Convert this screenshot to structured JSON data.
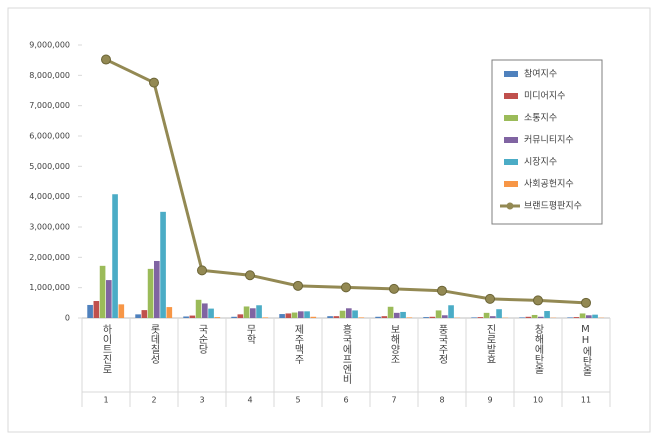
{
  "chart_data": {
    "type": "bar",
    "categories": [
      "하이트진로",
      "롯데칠성",
      "국순당",
      "무학",
      "제주맥주",
      "흥국에프엔비",
      "보해양조",
      "풍국주정",
      "진로발효",
      "창해에탄올",
      "MH에탄올"
    ],
    "category_numbers": [
      1,
      2,
      3,
      4,
      5,
      6,
      7,
      8,
      9,
      10,
      11
    ],
    "series": [
      {
        "name": "참여지수",
        "color": "#4f81bd",
        "values": [
          430000,
          120000,
          50000,
          40000,
          130000,
          60000,
          40000,
          30000,
          20000,
          20000,
          20000
        ]
      },
      {
        "name": "미디어지수",
        "color": "#c0504d",
        "values": [
          560000,
          260000,
          80000,
          120000,
          150000,
          60000,
          60000,
          40000,
          30000,
          40000,
          30000
        ]
      },
      {
        "name": "소통지수",
        "color": "#9bbb59",
        "values": [
          1720000,
          1620000,
          600000,
          380000,
          180000,
          240000,
          370000,
          250000,
          170000,
          100000,
          150000
        ]
      },
      {
        "name": "커뮤니티지수",
        "color": "#8064a2",
        "values": [
          1250000,
          1880000,
          480000,
          320000,
          220000,
          320000,
          170000,
          90000,
          60000,
          40000,
          90000
        ]
      },
      {
        "name": "시장지수",
        "color": "#4bacc6",
        "values": [
          4080000,
          3500000,
          310000,
          420000,
          220000,
          250000,
          200000,
          420000,
          290000,
          230000,
          110000
        ]
      },
      {
        "name": "사회공헌지수",
        "color": "#f79646",
        "values": [
          450000,
          360000,
          30000,
          20000,
          40000,
          20000,
          20000,
          10000,
          10000,
          10000,
          10000
        ]
      },
      {
        "name": "브랜드평판지수",
        "color": "#938953",
        "type": "line",
        "values": [
          8520000,
          7760000,
          1570000,
          1410000,
          1060000,
          1010000,
          960000,
          900000,
          630000,
          580000,
          500000
        ]
      }
    ],
    "ylim": [
      0,
      9000000
    ],
    "yticks": [
      0,
      {
        "value": 1000000,
        "label": "1,000,000"
      },
      {
        "value": 2000000,
        "label": "2,000,000"
      },
      {
        "value": 3000000,
        "label": "3,000,000"
      },
      {
        "value": 4000000,
        "label": "4,000,000"
      },
      {
        "value": 5000000,
        "label": "5,000,000"
      },
      {
        "value": 6000000,
        "label": "6,000,000"
      },
      {
        "value": 7000000,
        "label": "7,000,000"
      },
      {
        "value": 8000000,
        "label": "8,000,000"
      },
      {
        "value": 9000000,
        "label": "9,000,000"
      }
    ],
    "grid": false,
    "legend": "upper right"
  }
}
